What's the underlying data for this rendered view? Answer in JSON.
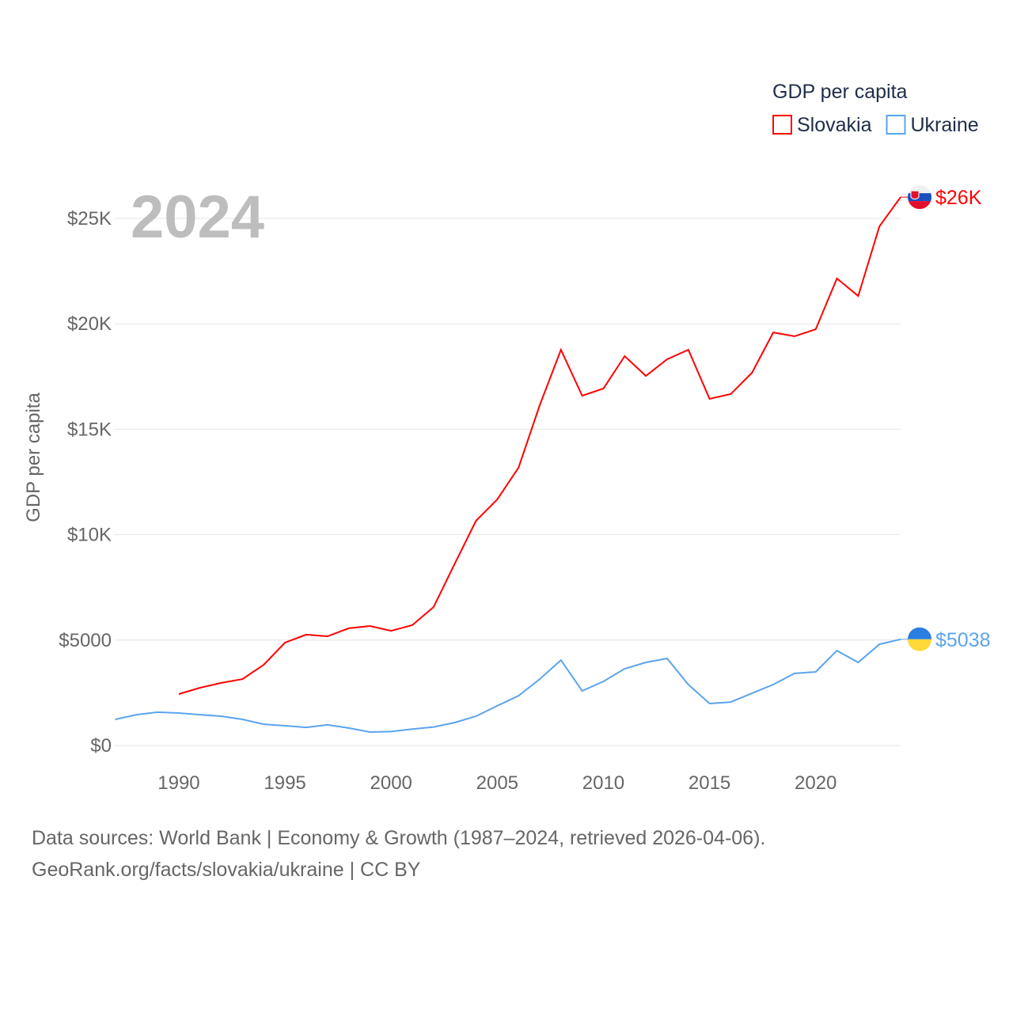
{
  "chart_data": {
    "type": "line",
    "title": "GDP per capita",
    "year_label": "2024",
    "ylabel": "GDP per capita",
    "xlabel": "",
    "xlim": [
      1987,
      2024
    ],
    "ylim": [
      0,
      26000
    ],
    "grid": true,
    "legend_placement": "top-right",
    "x_ticks": [
      1990,
      1995,
      2000,
      2005,
      2010,
      2015,
      2020
    ],
    "x_tick_labels": [
      "1990",
      "1995",
      "2000",
      "2005",
      "2010",
      "2015",
      "2020"
    ],
    "y_ticks": [
      0,
      5000,
      10000,
      15000,
      20000,
      25000
    ],
    "y_tick_labels": [
      "$0",
      "$5000",
      "$10K",
      "$15K",
      "$20K",
      "$25K"
    ],
    "series": [
      {
        "name": "Slovakia",
        "color": "#ff0000",
        "end_label": "$26K",
        "x": [
          1990,
          1991,
          1992,
          1993,
          1994,
          1995,
          1996,
          1997,
          1998,
          1999,
          2000,
          2001,
          2002,
          2003,
          2004,
          2005,
          2006,
          2007,
          2008,
          2009,
          2010,
          2011,
          2012,
          2013,
          2014,
          2015,
          2016,
          2017,
          2018,
          2019,
          2020,
          2021,
          2022,
          2023,
          2024
        ],
        "values": [
          2440,
          2740,
          2970,
          3150,
          3830,
          4880,
          5260,
          5180,
          5560,
          5670,
          5440,
          5710,
          6570,
          8630,
          10660,
          11670,
          13180,
          16140,
          18770,
          16590,
          16930,
          18470,
          17530,
          18320,
          18770,
          16440,
          16670,
          17680,
          19590,
          19410,
          19740,
          22150,
          21320,
          24620,
          26010
        ]
      },
      {
        "name": "Ukraine",
        "color": "#5ba4ec",
        "end_label": "$5038",
        "x": [
          1987,
          1988,
          1989,
          1990,
          1991,
          1992,
          1993,
          1994,
          1995,
          1996,
          1997,
          1998,
          1999,
          2000,
          2001,
          2002,
          2003,
          2004,
          2005,
          2006,
          2007,
          2008,
          2009,
          2010,
          2011,
          2012,
          2013,
          2014,
          2015,
          2016,
          2017,
          2018,
          2019,
          2020,
          2021,
          2022,
          2023,
          2024
        ],
        "values": [
          1240,
          1460,
          1580,
          1540,
          1460,
          1390,
          1240,
          1010,
          940,
          860,
          980,
          830,
          640,
          660,
          780,
          880,
          1090,
          1390,
          1880,
          2360,
          3150,
          4050,
          2590,
          3040,
          3640,
          3940,
          4130,
          2890,
          1990,
          2060,
          2480,
          2890,
          3420,
          3490,
          4500,
          3940,
          4800,
          5038
        ]
      }
    ]
  },
  "footer": {
    "line1": "Data sources: World Bank | Economy & Growth (1987–2024, retrieved 2026-04-06).",
    "line2": "GeoRank.org/facts/slovakia/ukraine | CC BY"
  }
}
